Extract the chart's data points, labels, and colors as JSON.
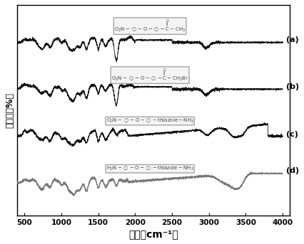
{
  "title": "",
  "xlabel": "波长（cm⁻¹）",
  "ylabel": "透过率（%）",
  "xmin": 400,
  "xmax": 4000,
  "xticks": [
    500,
    1000,
    1500,
    2000,
    2500,
    3000,
    3500,
    4000
  ],
  "labels": [
    "(a)",
    "(b)",
    "(c)",
    "(d)"
  ],
  "offsets": [
    3.0,
    2.0,
    1.0,
    0.0
  ],
  "line_colors": [
    "#111111",
    "#111111",
    "#111111",
    "#777777"
  ],
  "bg_color": "#ffffff",
  "structures": {
    "a": "O₂N—◯—O—◯—C(=O)—CH₃",
    "b": "O₂N—◯—O—◯—C(=O)—CH₂Br",
    "c": "O₂N—◯—O—◯—thiazole—NH₂",
    "d": "H₂N—◯—O—◯—thiazole—NH₂"
  }
}
